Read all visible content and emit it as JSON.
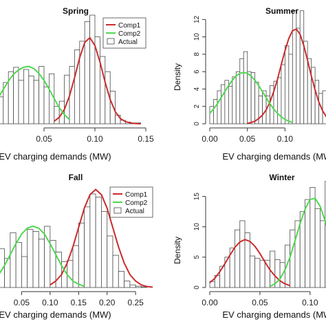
{
  "chart_data": [
    {
      "type": "histogram",
      "title": "Spring",
      "xlabel": "EV charging demands (MW)",
      "ylabel": "",
      "xlim": [
        0.0,
        0.15
      ],
      "ylim": [
        0,
        25
      ],
      "x_ticks": [
        {
          "v": 0.05,
          "label": "0.05"
        },
        {
          "v": 0.1,
          "label": "0.10"
        },
        {
          "v": 0.15,
          "label": "0.15"
        }
      ],
      "y_ticks": [],
      "bin_width": 0.005,
      "bins_start": [
        0.0,
        0.005,
        0.01,
        0.015,
        0.02,
        0.025,
        0.03,
        0.035,
        0.04,
        0.045,
        0.05,
        0.055,
        0.06,
        0.065,
        0.07,
        0.075,
        0.08,
        0.085,
        0.09,
        0.095,
        0.1,
        0.105,
        0.11,
        0.115,
        0.12,
        0.125,
        0.13,
        0.135,
        0.14,
        0.145
      ],
      "bins_density": [
        6.0,
        6.2,
        9.5,
        12.0,
        13.0,
        10.0,
        12.5,
        11.0,
        10.0,
        13.2,
        8.5,
        11.5,
        4.0,
        5.2,
        11.2,
        13.2,
        17.0,
        19.0,
        23.5,
        25.0,
        20.0,
        15.5,
        12.0,
        7.5,
        2.0,
        0.8,
        0.4,
        0.2,
        0.2,
        0.0
      ],
      "components": [
        {
          "name": "Comp1",
          "color": "#cc2b2b",
          "x": [
            0.06,
            0.065,
            0.07,
            0.075,
            0.08,
            0.085,
            0.09,
            0.095,
            0.1,
            0.105,
            0.11,
            0.115,
            0.12,
            0.125,
            0.13,
            0.135,
            0.14,
            0.145
          ],
          "y": [
            0.6,
            1.5,
            3.3,
            6.4,
            10.6,
            15.2,
            18.7,
            19.8,
            18.0,
            14.2,
            9.6,
            5.6,
            2.8,
            1.2,
            0.5,
            0.2,
            0.05,
            0.0
          ]
        },
        {
          "name": "Comp2",
          "color": "#4dd84d",
          "x": [
            0.0,
            0.005,
            0.01,
            0.015,
            0.02,
            0.025,
            0.03,
            0.035,
            0.04,
            0.045,
            0.05,
            0.055,
            0.06,
            0.065,
            0.07,
            0.075
          ],
          "y": [
            4.3,
            6.0,
            7.9,
            9.8,
            11.4,
            12.4,
            13.0,
            13.2,
            12.7,
            11.6,
            10.0,
            8.0,
            5.8,
            3.7,
            2.1,
            1.0
          ]
        }
      ],
      "legend": {
        "entries": [
          "Comp1",
          "Comp2",
          "Actual"
        ],
        "position": "top-right"
      }
    },
    {
      "type": "histogram",
      "title": "Summer",
      "xlabel": "EV charging demands (MW)",
      "ylabel": "Density",
      "xlim": [
        0.0,
        0.16
      ],
      "ylim": [
        0,
        12.5
      ],
      "x_ticks": [
        {
          "v": 0.0,
          "label": "0.00"
        },
        {
          "v": 0.05,
          "label": "0.05"
        },
        {
          "v": 0.1,
          "label": "0.10"
        }
      ],
      "y_ticks": [
        {
          "v": 0,
          "label": "0"
        },
        {
          "v": 2,
          "label": "2"
        },
        {
          "v": 4,
          "label": "4"
        },
        {
          "v": 6,
          "label": "6"
        },
        {
          "v": 8,
          "label": "8"
        },
        {
          "v": 10,
          "label": "10"
        },
        {
          "v": 12,
          "label": "12"
        }
      ],
      "bin_width": 0.005,
      "bins_start": [
        0.0,
        0.005,
        0.01,
        0.015,
        0.02,
        0.025,
        0.03,
        0.035,
        0.04,
        0.045,
        0.05,
        0.055,
        0.06,
        0.065,
        0.07,
        0.075,
        0.08,
        0.085,
        0.09,
        0.095,
        0.1,
        0.105,
        0.11,
        0.115,
        0.12,
        0.125,
        0.13,
        0.135,
        0.14,
        0.145,
        0.15,
        0.155
      ],
      "bins_density": [
        2.0,
        2.8,
        3.8,
        4.5,
        5.0,
        4.3,
        5.4,
        6.0,
        7.5,
        8.3,
        6.0,
        5.9,
        4.8,
        3.2,
        3.8,
        3.2,
        4.4,
        4.9,
        5.3,
        6.8,
        9.0,
        8.0,
        13.0,
        11.0,
        13.0,
        9.5,
        7.5,
        6.5,
        5.0,
        3.5,
        3.8,
        2.8
      ],
      "components": [
        {
          "name": "Comp1",
          "color": "#cc2b2b",
          "x": [
            0.05,
            0.055,
            0.06,
            0.065,
            0.07,
            0.075,
            0.08,
            0.085,
            0.09,
            0.095,
            0.1,
            0.105,
            0.11,
            0.115,
            0.12,
            0.125,
            0.13,
            0.135,
            0.14,
            0.145,
            0.15,
            0.155,
            0.16
          ],
          "y": [
            0.05,
            0.15,
            0.3,
            0.6,
            1.0,
            1.6,
            2.5,
            3.7,
            5.1,
            6.8,
            8.4,
            9.8,
            10.7,
            10.9,
            10.3,
            9.0,
            7.3,
            5.5,
            3.9,
            2.5,
            1.5,
            0.8,
            0.4
          ]
        },
        {
          "name": "Comp2",
          "color": "#4dd84d",
          "x": [
            0.0,
            0.005,
            0.01,
            0.015,
            0.02,
            0.025,
            0.03,
            0.035,
            0.04,
            0.045,
            0.05,
            0.055,
            0.06,
            0.065,
            0.07,
            0.075,
            0.08,
            0.085,
            0.09,
            0.095,
            0.1,
            0.105,
            0.11
          ],
          "y": [
            1.2,
            1.7,
            2.3,
            3.0,
            3.7,
            4.4,
            5.0,
            5.5,
            5.8,
            5.9,
            5.8,
            5.5,
            5.0,
            4.4,
            3.7,
            3.0,
            2.3,
            1.7,
            1.2,
            0.8,
            0.5,
            0.3,
            0.15
          ]
        }
      ],
      "legend": null
    },
    {
      "type": "histogram",
      "title": "Fall",
      "xlabel": "EV charging demands (MW)",
      "ylabel": "",
      "xlim": [
        0.0,
        0.28
      ],
      "ylim": [
        0,
        16
      ],
      "x_ticks": [
        {
          "v": 0.05,
          "label": "0.05"
        },
        {
          "v": 0.1,
          "label": "0.10"
        },
        {
          "v": 0.15,
          "label": "0.15"
        },
        {
          "v": 0.2,
          "label": "0.20"
        },
        {
          "v": 0.25,
          "label": "0.25"
        }
      ],
      "y_ticks": [],
      "bin_width": 0.01,
      "bins_start": [
        0.0,
        0.01,
        0.02,
        0.03,
        0.04,
        0.05,
        0.06,
        0.07,
        0.08,
        0.09,
        0.1,
        0.11,
        0.12,
        0.13,
        0.14,
        0.15,
        0.16,
        0.17,
        0.18,
        0.19,
        0.2,
        0.21,
        0.22,
        0.23,
        0.24,
        0.25,
        0.26,
        0.27
      ],
      "bins_density": [
        3.5,
        6.0,
        4.5,
        8.5,
        7.0,
        4.8,
        9.0,
        8.7,
        7.5,
        9.5,
        7.3,
        5.5,
        4.0,
        4.2,
        6.5,
        10.0,
        12.5,
        14.5,
        14.0,
        11.8,
        8.0,
        5.0,
        2.5,
        1.0,
        0.4,
        0.2,
        0.1,
        0.0
      ],
      "components": [
        {
          "name": "Comp1",
          "color": "#cc2b2b",
          "x": [
            0.1,
            0.11,
            0.12,
            0.13,
            0.14,
            0.15,
            0.16,
            0.17,
            0.18,
            0.19,
            0.2,
            0.21,
            0.22,
            0.23,
            0.24,
            0.25,
            0.26,
            0.27,
            0.28
          ],
          "y": [
            0.4,
            1.0,
            2.0,
            3.8,
            6.3,
            9.3,
            12.3,
            14.4,
            15.2,
            14.4,
            12.3,
            9.3,
            6.3,
            3.8,
            2.0,
            1.0,
            0.4,
            0.15,
            0.05
          ]
        },
        {
          "name": "Comp2",
          "color": "#4dd84d",
          "x": [
            0.0,
            0.01,
            0.02,
            0.03,
            0.04,
            0.05,
            0.06,
            0.07,
            0.08,
            0.09,
            0.1,
            0.11,
            0.12,
            0.13,
            0.14,
            0.15,
            0.16
          ],
          "y": [
            1.0,
            2.0,
            3.4,
            5.1,
            6.8,
            8.3,
            9.2,
            9.5,
            9.2,
            8.3,
            6.8,
            5.1,
            3.4,
            2.0,
            1.0,
            0.5,
            0.2
          ]
        }
      ],
      "legend": {
        "entries": [
          "Comp1",
          "Comp2",
          "Actual"
        ],
        "position": "top-right"
      }
    },
    {
      "type": "histogram",
      "title": "Winter",
      "xlabel": "EV charging demands (MW)",
      "ylabel": "Density",
      "xlim": [
        0.0,
        0.12
      ],
      "ylim": [
        0,
        17
      ],
      "x_ticks": [
        {
          "v": 0.0,
          "label": "0.00"
        },
        {
          "v": 0.05,
          "label": "0.05"
        },
        {
          "v": 0.1,
          "label": "0.10"
        }
      ],
      "y_ticks": [
        {
          "v": 0,
          "label": "0"
        },
        {
          "v": 5,
          "label": "5"
        },
        {
          "v": 10,
          "label": "10"
        },
        {
          "v": 15,
          "label": "15"
        }
      ],
      "bin_width": 0.005,
      "bins_start": [
        0.0,
        0.005,
        0.01,
        0.015,
        0.02,
        0.025,
        0.03,
        0.035,
        0.04,
        0.045,
        0.05,
        0.055,
        0.06,
        0.065,
        0.07,
        0.075,
        0.08,
        0.085,
        0.09,
        0.095,
        0.1,
        0.105,
        0.11,
        0.115
      ],
      "bins_density": [
        1.0,
        2.0,
        3.5,
        5.0,
        6.5,
        9.5,
        11.0,
        9.0,
        5.2,
        4.8,
        4.5,
        4.5,
        6.0,
        4.6,
        4.1,
        7.0,
        9.5,
        11.0,
        12.5,
        14.5,
        16.5,
        13.0,
        11.0,
        17.5
      ],
      "components": [
        {
          "name": "Comp1",
          "color": "#cc2b2b",
          "x": [
            0.0,
            0.005,
            0.01,
            0.015,
            0.02,
            0.025,
            0.03,
            0.035,
            0.04,
            0.045,
            0.05,
            0.055,
            0.06,
            0.065,
            0.07,
            0.075,
            0.08
          ],
          "y": [
            0.8,
            1.5,
            2.6,
            3.9,
            5.3,
            6.6,
            7.5,
            7.9,
            7.6,
            6.8,
            5.6,
            4.2,
            2.9,
            1.9,
            1.1,
            0.6,
            0.3
          ]
        },
        {
          "name": "Comp2",
          "color": "#4dd84d",
          "x": [
            0.06,
            0.065,
            0.07,
            0.075,
            0.08,
            0.085,
            0.09,
            0.095,
            0.1,
            0.105,
            0.11,
            0.115,
            0.12
          ],
          "y": [
            0.2,
            0.6,
            1.4,
            2.9,
            5.0,
            7.7,
            10.5,
            12.9,
            14.5,
            14.7,
            13.4,
            11.0,
            8.0
          ]
        }
      ],
      "legend": null
    }
  ]
}
